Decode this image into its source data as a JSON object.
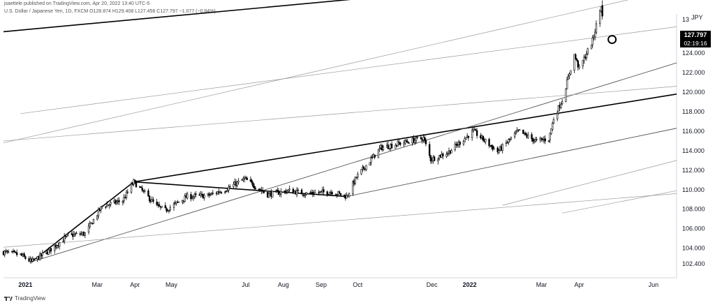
{
  "header": {
    "published": "jsaettele published on TradingView.com, Apr 20, 2022 13:40 UTC-5",
    "symbol_line": "U.S. Dollar / Japanese Yen, 1D, FXCM  O128.874  H129.408  L127.456  C127.797  −1.077 (−0.84%)"
  },
  "price_badge": {
    "price": "127.797",
    "countdown": "02:19:16"
  },
  "currency_label": "JPY",
  "footer": {
    "brand": "TradingView"
  },
  "colors": {
    "up": "#ffffff",
    "down": "#000000",
    "line_dark": "#000000",
    "line_light": "#999999",
    "axis_text": "#131722"
  },
  "chart_data": {
    "type": "candlestick",
    "title": "",
    "y_axis": {
      "ticks": [
        "102.400",
        "104.000",
        "106.000",
        "108.000",
        "110.000",
        "112.000",
        "114.000",
        "116.000",
        "118.000",
        "120.000",
        "122.000",
        "124.000",
        "126.000"
      ],
      "partial_top_tick": "13",
      "range": [
        101.4,
        130.8
      ]
    },
    "x_axis": {
      "ticks": [
        "2021",
        "Mar",
        "Apr",
        "May",
        "Jul",
        "Aug",
        "Sep",
        "Oct",
        "Dec",
        "2022",
        "Mar",
        "Apr",
        "Jun"
      ],
      "range": [
        "2020-12-14",
        "2022-06-20"
      ]
    },
    "price_path": [
      [
        "2020-12-14",
        103.6
      ],
      [
        "2020-12-28",
        103.3
      ],
      [
        "2021-01-06",
        102.6
      ],
      [
        "2021-01-20",
        103.7
      ],
      [
        "2021-02-05",
        105.3
      ],
      [
        "2021-02-19",
        105.5
      ],
      [
        "2021-03-05",
        108.3
      ],
      [
        "2021-03-22",
        108.9
      ],
      [
        "2021-03-31",
        110.8
      ],
      [
        "2021-04-19",
        108.3
      ],
      [
        "2021-04-26",
        107.9
      ],
      [
        "2021-05-14",
        109.3
      ],
      [
        "2021-05-31",
        109.4
      ],
      [
        "2021-06-14",
        110.0
      ],
      [
        "2021-06-30",
        111.1
      ],
      [
        "2021-07-19",
        109.5
      ],
      [
        "2021-08-05",
        109.9
      ],
      [
        "2021-08-20",
        109.6
      ],
      [
        "2021-09-10",
        109.8
      ],
      [
        "2021-09-22",
        109.3
      ],
      [
        "2021-09-30",
        111.3
      ],
      [
        "2021-10-20",
        114.3
      ],
      [
        "2021-11-24",
        115.3
      ],
      [
        "2021-11-30",
        113.1
      ],
      [
        "2021-12-14",
        113.8
      ],
      [
        "2022-01-04",
        116.0
      ],
      [
        "2022-01-24",
        113.9
      ],
      [
        "2022-02-10",
        116.0
      ],
      [
        "2022-02-24",
        115.0
      ],
      [
        "2022-03-07",
        115.2
      ],
      [
        "2022-03-11",
        117.3
      ],
      [
        "2022-03-18",
        119.2
      ],
      [
        "2022-03-28",
        123.8
      ],
      [
        "2022-04-01",
        122.4
      ],
      [
        "2022-04-06",
        123.7
      ],
      [
        "2022-04-12",
        125.3
      ],
      [
        "2022-04-19",
        128.9
      ],
      [
        "2022-04-20",
        127.797
      ]
    ],
    "trendlines": [
      {
        "style": "dark",
        "from": [
          "2020-12-14",
          126.2
        ],
        "to": [
          "2022-04-20",
          131.9
        ]
      },
      {
        "style": "dark",
        "from": [
          "2021-03-31",
          110.8
        ],
        "to": [
          "2022-06-20",
          119.8
        ]
      },
      {
        "style": "dark",
        "from": [
          "2021-01-06",
          102.6
        ],
        "to": [
          "2021-03-31",
          110.8
        ]
      },
      {
        "style": "dark",
        "from": [
          "2021-03-31",
          110.8
        ],
        "to": [
          "2021-09-22",
          109.3
        ]
      },
      {
        "style": "medium",
        "from": [
          "2021-01-06",
          102.6
        ],
        "to": [
          "2022-06-20",
          123.0
        ]
      },
      {
        "style": "medium",
        "from": [
          "2021-09-22",
          109.3
        ],
        "to": [
          "2022-06-20",
          116.3
        ]
      },
      {
        "style": "light",
        "from": [
          "2020-12-14",
          104.1
        ],
        "to": [
          "2022-06-20",
          109.6
        ]
      },
      {
        "style": "light",
        "from": [
          "2020-12-14",
          115.0
        ],
        "to": [
          "2022-06-20",
          120.6
        ]
      },
      {
        "style": "light",
        "from": [
          "2020-12-14",
          114.8
        ],
        "to": [
          "2022-06-20",
          130.6
        ]
      },
      {
        "style": "light",
        "from": [
          "2020-12-28",
          117.8
        ],
        "to": [
          "2022-06-20",
          126.7
        ]
      },
      {
        "style": "light",
        "from": [
          "2022-01-28",
          108.4
        ],
        "to": [
          "2022-06-20",
          113.0
        ]
      },
      {
        "style": "light",
        "from": [
          "2022-03-18",
          107.6
        ],
        "to": [
          "2022-06-20",
          109.9
        ]
      }
    ],
    "marker": {
      "shape": "circle",
      "date": "2022-04-28",
      "value": 125.4
    },
    "last_price": 127.797
  }
}
